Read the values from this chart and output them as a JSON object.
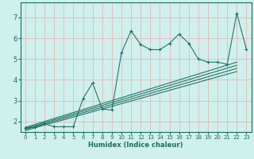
{
  "xlabel": "Humidex (Indice chaleur)",
  "bg_color": "#cff0ec",
  "grid_color": "#e8b8b8",
  "line_color": "#1a6e62",
  "xlim": [
    -0.5,
    23.5
  ],
  "ylim": [
    1.5,
    7.7
  ],
  "xticks": [
    0,
    1,
    2,
    3,
    4,
    5,
    6,
    7,
    8,
    9,
    10,
    11,
    12,
    13,
    14,
    15,
    16,
    17,
    18,
    19,
    20,
    21,
    22,
    23
  ],
  "yticks": [
    2,
    3,
    4,
    5,
    6,
    7
  ],
  "main_line_x": [
    0,
    1,
    2,
    3,
    4,
    5,
    6,
    7,
    8,
    9,
    10,
    11,
    12,
    13,
    14,
    15,
    16,
    17,
    18,
    19,
    20,
    21,
    22,
    23
  ],
  "main_line_y": [
    1.7,
    1.72,
    1.9,
    1.75,
    1.75,
    1.75,
    3.1,
    3.85,
    2.6,
    2.55,
    5.3,
    6.35,
    5.7,
    5.45,
    5.45,
    5.75,
    6.2,
    5.75,
    5.0,
    4.85,
    4.85,
    4.75,
    7.2,
    5.45
  ],
  "linear_lines": [
    {
      "x": [
        0,
        22
      ],
      "y": [
        1.72,
        4.85
      ]
    },
    {
      "x": [
        0,
        22
      ],
      "y": [
        1.67,
        4.7
      ]
    },
    {
      "x": [
        0,
        22
      ],
      "y": [
        1.62,
        4.55
      ]
    },
    {
      "x": [
        0,
        22
      ],
      "y": [
        1.57,
        4.4
      ]
    }
  ]
}
